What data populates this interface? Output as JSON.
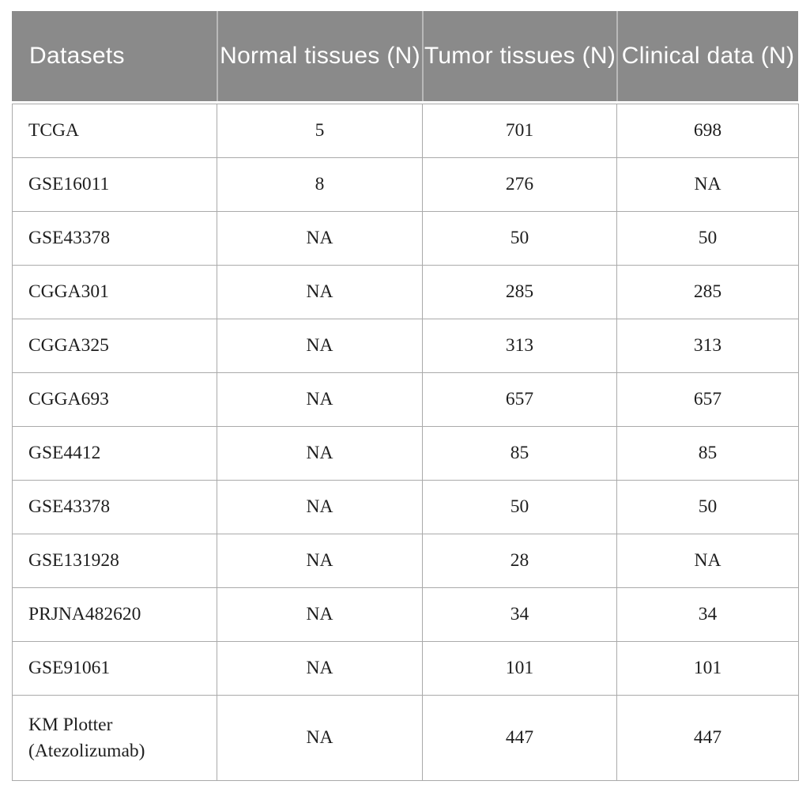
{
  "table": {
    "name": "datasets-summary-table",
    "columns": [
      "Datasets",
      "Normal tissues (N)",
      "Tumor tissues (N)",
      "Clinical data (N)"
    ],
    "rows": [
      [
        "TCGA",
        "5",
        "701",
        "698"
      ],
      [
        "GSE16011",
        "8",
        "276",
        "NA"
      ],
      [
        "GSE43378",
        "NA",
        "50",
        "50"
      ],
      [
        "CGGA301",
        "NA",
        "285",
        "285"
      ],
      [
        "CGGA325",
        "NA",
        "313",
        "313"
      ],
      [
        "CGGA693",
        "NA",
        "657",
        "657"
      ],
      [
        "GSE4412",
        "NA",
        "85",
        "85"
      ],
      [
        "GSE43378",
        "NA",
        "50",
        "50"
      ],
      [
        "GSE131928",
        "NA",
        "28",
        "NA"
      ],
      [
        "PRJNA482620",
        "NA",
        "34",
        "34"
      ],
      [
        "GSE91061",
        "NA",
        "101",
        "101"
      ],
      [
        "KM Plotter (Atezolizumab)",
        "NA",
        "447",
        "447"
      ]
    ],
    "na_label": "NA"
  },
  "colors": {
    "header_bg": "#8a8a8a",
    "header_text": "#ffffff",
    "header_divider": "#b9b9b9",
    "grid": "#aaaaaa",
    "outer_border": "#8f8f8f",
    "body_text": "#1e1e1e"
  }
}
